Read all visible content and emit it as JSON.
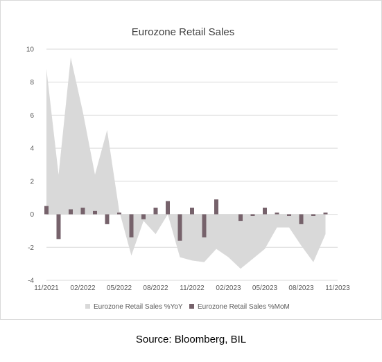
{
  "chart_data": {
    "type": "area",
    "title": "Eurozone Retail Sales",
    "ylim": [
      -4,
      10
    ],
    "yticks": [
      "10",
      "8",
      "6",
      "4",
      "2",
      "0",
      "-2",
      "-4"
    ],
    "xtick_labels": [
      "11/2021",
      "02/2022",
      "05/2022",
      "08/2022",
      "11/2022",
      "02/2023",
      "05/2023",
      "08/2023",
      "11/2023"
    ],
    "months": [
      "11/2021",
      "12/2021",
      "01/2022",
      "02/2022",
      "03/2022",
      "04/2022",
      "05/2022",
      "06/2022",
      "07/2022",
      "08/2022",
      "09/2022",
      "10/2022",
      "11/2022",
      "12/2022",
      "01/2023",
      "02/2023",
      "03/2023",
      "04/2023",
      "05/2023",
      "06/2023",
      "07/2023",
      "08/2023",
      "09/2023",
      "10/2023",
      "11/2023"
    ],
    "grid": true,
    "legend_position": "bottom",
    "series": [
      {
        "name": "Eurozone Retail Sales %YoY",
        "type": "area",
        "color": "#d9d9d9",
        "values": [
          8.8,
          2.4,
          9.5,
          6.2,
          2.4,
          5.1,
          0.2,
          -2.5,
          -0.4,
          -1.2,
          0.0,
          -2.6,
          -2.8,
          -2.9,
          -2.1,
          -2.6,
          -3.3,
          -2.7,
          -2.1,
          -0.8,
          -0.8,
          -1.9,
          -2.9,
          -1.2,
          null
        ]
      },
      {
        "name": "Eurozone Retail Sales %MoM",
        "type": "bar",
        "color": "#76626b",
        "values": [
          0.5,
          -1.5,
          0.3,
          0.4,
          0.2,
          -0.6,
          0.1,
          -1.4,
          -0.3,
          0.4,
          0.8,
          -1.6,
          0.4,
          -1.4,
          0.9,
          0.0,
          -0.4,
          -0.1,
          0.4,
          0.1,
          -0.1,
          -0.6,
          -0.1,
          0.1,
          null
        ]
      }
    ]
  },
  "source": "Source: Bloomberg, BIL"
}
